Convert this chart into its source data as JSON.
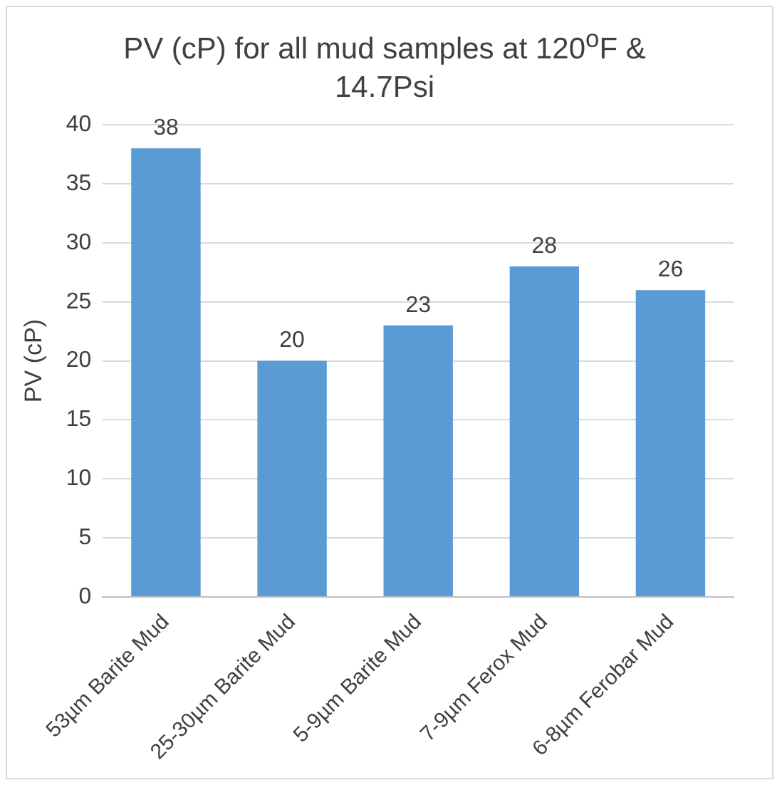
{
  "chart_data": {
    "type": "bar",
    "title": "PV (cP) for all mud samples at 120$^{o}$F & 14.7Psi",
    "ylabel": "PV (cP)",
    "categories": [
      "53µm Barite Mud",
      "25-30µm Barite Mud",
      "5-9µm Barite Mud",
      "7-9µm Ferox Mud",
      "6-8µm Ferobar Mud"
    ],
    "values": [
      38,
      20,
      23,
      28,
      26
    ],
    "color": "#5b9bd5",
    "ylim": [
      0,
      40
    ],
    "yticks": [
      0,
      5,
      10,
      15,
      20,
      25,
      30,
      35,
      40
    ],
    "grid": "y",
    "data_labels": true,
    "legend": false
  }
}
